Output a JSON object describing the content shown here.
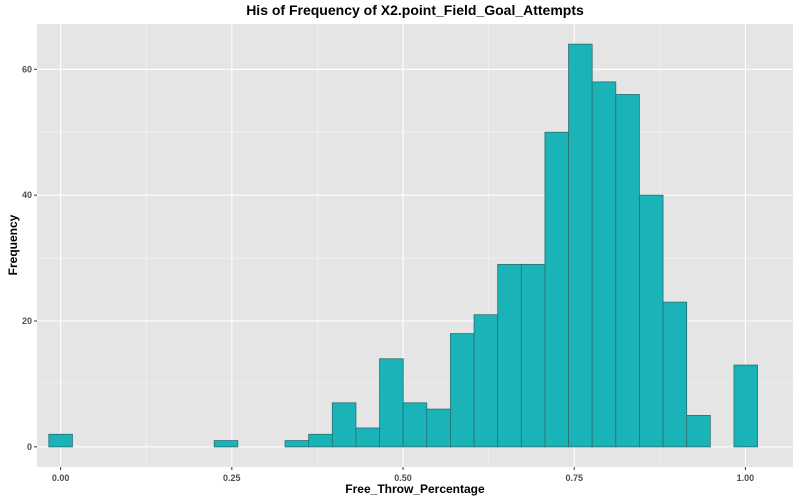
{
  "chart_data": {
    "type": "bar",
    "title": "His of Frequency of X2.point_Field_Goal_Attempts",
    "xlabel": "Free_Throw_Percentage",
    "ylabel": "Frequency",
    "bin_width": 0.0345,
    "bin_centers": [
      0.0,
      0.0345,
      0.069,
      0.1035,
      0.138,
      0.1725,
      0.207,
      0.2415,
      0.276,
      0.3105,
      0.345,
      0.3795,
      0.414,
      0.4485,
      0.483,
      0.5175,
      0.552,
      0.5865,
      0.621,
      0.6555,
      0.69,
      0.7245,
      0.759,
      0.7935,
      0.828,
      0.8625,
      0.897,
      0.9315,
      0.966,
      1.0005
    ],
    "values": [
      2,
      0,
      0,
      0,
      0,
      0,
      0,
      1,
      0,
      0,
      1,
      2,
      7,
      3,
      14,
      7,
      6,
      18,
      21,
      29,
      29,
      50,
      64,
      58,
      56,
      40,
      23,
      5,
      0,
      13
    ],
    "xlim": [
      -0.0345,
      1.0695
    ],
    "ylim": [
      -3.2,
      67.2
    ],
    "x_ticks": [
      0.0,
      0.25,
      0.5,
      0.75,
      1.0
    ],
    "x_tick_labels": [
      "0.00",
      "0.25",
      "0.50",
      "0.75",
      "1.00"
    ],
    "y_ticks": [
      0,
      20,
      40,
      60
    ],
    "y_tick_labels": [
      "0",
      "20",
      "40",
      "60"
    ],
    "grid": true,
    "legend": "none",
    "colors": {
      "bar_fill": "#1ab3b8",
      "bar_stroke": "#2b6f72",
      "panel": "#e5e5e5",
      "grid": "#ffffff"
    }
  }
}
